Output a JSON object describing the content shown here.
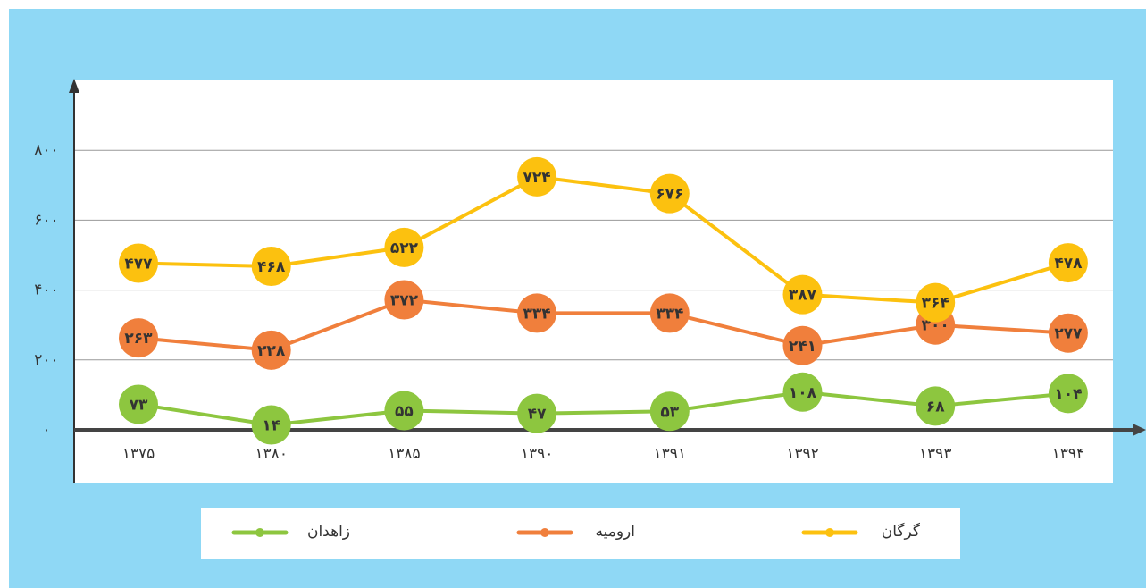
{
  "chart_data": {
    "type": "line",
    "categories": [
      "۱۳۷۵",
      "۱۳۸۰",
      "۱۳۸۵",
      "۱۳۹۰",
      "۱۳۹۱",
      "۱۳۹۲",
      "۱۳۹۳",
      "۱۳۹۴"
    ],
    "series": [
      {
        "name": "زاهدان",
        "color": "#8dc63f",
        "values": [
          73,
          14,
          55,
          47,
          53,
          108,
          68,
          104
        ],
        "value_labels": [
          "۷۳",
          "۱۴",
          "۵۵",
          "۴۷",
          "۵۳",
          "۱۰۸",
          "۶۸",
          "۱۰۴"
        ]
      },
      {
        "name": "ارومیه",
        "color": "#f07f3c",
        "values": [
          263,
          228,
          372,
          334,
          334,
          241,
          300,
          277
        ],
        "value_labels": [
          "۲۶۳",
          "۲۲۸",
          "۳۷۲",
          "۳۳۴",
          "۳۳۴",
          "۲۴۱",
          "۳۰۰",
          "۲۷۷"
        ]
      },
      {
        "name": "گرگان",
        "color": "#fcc10f",
        "values": [
          477,
          468,
          522,
          724,
          676,
          387,
          364,
          478
        ],
        "value_labels": [
          "۴۷۷",
          "۴۶۸",
          "۵۲۲",
          "۷۲۴",
          "۶۷۶",
          "۳۸۷",
          "۳۶۴",
          "۴۷۸"
        ]
      }
    ],
    "ylim": [
      0,
      1000
    ],
    "yticks": [
      {
        "value": 0,
        "label": "۰"
      },
      {
        "value": 200,
        "label": "۲۰۰"
      },
      {
        "value": 400,
        "label": "۴۰۰"
      },
      {
        "value": 600,
        "label": "۶۰۰"
      },
      {
        "value": 800,
        "label": "۸۰۰"
      }
    ],
    "grid": true
  }
}
